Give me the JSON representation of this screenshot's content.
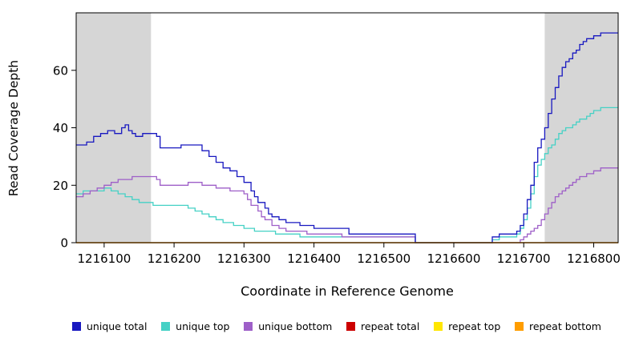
{
  "chart_data": {
    "type": "line",
    "subtype": "step",
    "title": "",
    "xlabel": "Coordinate in Reference Genome",
    "ylabel": "Read Coverage Depth",
    "xlim": [
      1216060,
      1216835
    ],
    "ylim": [
      0,
      80
    ],
    "x_ticks": [
      1216100,
      1216200,
      1216300,
      1216400,
      1216500,
      1216600,
      1216700,
      1216800
    ],
    "y_ticks": [
      0,
      20,
      40,
      60
    ],
    "grid": false,
    "legend_position": "bottom",
    "shaded_regions": [
      {
        "x_start": 1216060,
        "x_end": 1216167,
        "color": "#d6d6d6"
      },
      {
        "x_start": 1216730,
        "x_end": 1216835,
        "color": "#d6d6d6"
      }
    ],
    "series": [
      {
        "name": "unique total",
        "color": "#1818c0",
        "points": [
          [
            1216060,
            34
          ],
          [
            1216075,
            35
          ],
          [
            1216085,
            37
          ],
          [
            1216095,
            38
          ],
          [
            1216105,
            39
          ],
          [
            1216115,
            38
          ],
          [
            1216125,
            40
          ],
          [
            1216130,
            41
          ],
          [
            1216135,
            39
          ],
          [
            1216140,
            38
          ],
          [
            1216145,
            37
          ],
          [
            1216155,
            38
          ],
          [
            1216165,
            38
          ],
          [
            1216175,
            37
          ],
          [
            1216180,
            33
          ],
          [
            1216200,
            33
          ],
          [
            1216210,
            34
          ],
          [
            1216230,
            34
          ],
          [
            1216240,
            32
          ],
          [
            1216250,
            30
          ],
          [
            1216260,
            28
          ],
          [
            1216270,
            26
          ],
          [
            1216280,
            25
          ],
          [
            1216290,
            23
          ],
          [
            1216300,
            21
          ],
          [
            1216310,
            18
          ],
          [
            1216315,
            16
          ],
          [
            1216320,
            14
          ],
          [
            1216330,
            12
          ],
          [
            1216335,
            10
          ],
          [
            1216340,
            9
          ],
          [
            1216350,
            8
          ],
          [
            1216360,
            7
          ],
          [
            1216380,
            6
          ],
          [
            1216400,
            5
          ],
          [
            1216430,
            5
          ],
          [
            1216450,
            3
          ],
          [
            1216540,
            3
          ],
          [
            1216545,
            0
          ],
          [
            1216650,
            0
          ],
          [
            1216655,
            2
          ],
          [
            1216665,
            3
          ],
          [
            1216680,
            3
          ],
          [
            1216690,
            4
          ],
          [
            1216695,
            6
          ],
          [
            1216700,
            10
          ],
          [
            1216705,
            15
          ],
          [
            1216710,
            20
          ],
          [
            1216715,
            28
          ],
          [
            1216720,
            33
          ],
          [
            1216725,
            36
          ],
          [
            1216730,
            40
          ],
          [
            1216735,
            45
          ],
          [
            1216740,
            50
          ],
          [
            1216745,
            54
          ],
          [
            1216750,
            58
          ],
          [
            1216755,
            61
          ],
          [
            1216760,
            63
          ],
          [
            1216765,
            64
          ],
          [
            1216770,
            66
          ],
          [
            1216775,
            67
          ],
          [
            1216780,
            69
          ],
          [
            1216785,
            70
          ],
          [
            1216790,
            71
          ],
          [
            1216800,
            72
          ],
          [
            1216810,
            73
          ],
          [
            1216835,
            73
          ]
        ]
      },
      {
        "name": "unique top",
        "color": "#45d1c5",
        "points": [
          [
            1216060,
            17
          ],
          [
            1216070,
            18
          ],
          [
            1216090,
            18
          ],
          [
            1216100,
            19
          ],
          [
            1216110,
            18
          ],
          [
            1216120,
            17
          ],
          [
            1216130,
            16
          ],
          [
            1216140,
            15
          ],
          [
            1216150,
            14
          ],
          [
            1216170,
            13
          ],
          [
            1216200,
            13
          ],
          [
            1216220,
            12
          ],
          [
            1216230,
            11
          ],
          [
            1216240,
            10
          ],
          [
            1216250,
            9
          ],
          [
            1216260,
            8
          ],
          [
            1216270,
            7
          ],
          [
            1216285,
            6
          ],
          [
            1216300,
            5
          ],
          [
            1216315,
            4
          ],
          [
            1216330,
            4
          ],
          [
            1216345,
            3
          ],
          [
            1216360,
            3
          ],
          [
            1216380,
            2
          ],
          [
            1216540,
            2
          ],
          [
            1216545,
            0
          ],
          [
            1216650,
            0
          ],
          [
            1216655,
            1
          ],
          [
            1216665,
            2
          ],
          [
            1216680,
            2
          ],
          [
            1216690,
            3
          ],
          [
            1216695,
            5
          ],
          [
            1216700,
            8
          ],
          [
            1216705,
            12
          ],
          [
            1216710,
            17
          ],
          [
            1216715,
            23
          ],
          [
            1216720,
            27
          ],
          [
            1216725,
            29
          ],
          [
            1216730,
            31
          ],
          [
            1216735,
            33
          ],
          [
            1216740,
            34
          ],
          [
            1216745,
            36
          ],
          [
            1216750,
            38
          ],
          [
            1216755,
            39
          ],
          [
            1216760,
            40
          ],
          [
            1216770,
            41
          ],
          [
            1216775,
            42
          ],
          [
            1216780,
            43
          ],
          [
            1216790,
            44
          ],
          [
            1216795,
            45
          ],
          [
            1216800,
            46
          ],
          [
            1216810,
            47
          ],
          [
            1216835,
            47
          ]
        ]
      },
      {
        "name": "unique bottom",
        "color": "#9e5fc8",
        "points": [
          [
            1216060,
            16
          ],
          [
            1216070,
            17
          ],
          [
            1216080,
            18
          ],
          [
            1216090,
            19
          ],
          [
            1216100,
            20
          ],
          [
            1216110,
            21
          ],
          [
            1216120,
            22
          ],
          [
            1216140,
            23
          ],
          [
            1216170,
            23
          ],
          [
            1216175,
            22
          ],
          [
            1216180,
            20
          ],
          [
            1216200,
            20
          ],
          [
            1216220,
            21
          ],
          [
            1216230,
            21
          ],
          [
            1216240,
            20
          ],
          [
            1216260,
            19
          ],
          [
            1216280,
            18
          ],
          [
            1216300,
            17
          ],
          [
            1216305,
            15
          ],
          [
            1216310,
            13
          ],
          [
            1216320,
            11
          ],
          [
            1216325,
            9
          ],
          [
            1216330,
            8
          ],
          [
            1216340,
            6
          ],
          [
            1216350,
            5
          ],
          [
            1216360,
            4
          ],
          [
            1216390,
            3
          ],
          [
            1216420,
            3
          ],
          [
            1216440,
            2
          ],
          [
            1216540,
            2
          ],
          [
            1216545,
            0
          ],
          [
            1216690,
            0
          ],
          [
            1216695,
            1
          ],
          [
            1216700,
            2
          ],
          [
            1216705,
            3
          ],
          [
            1216710,
            4
          ],
          [
            1216715,
            5
          ],
          [
            1216720,
            6
          ],
          [
            1216725,
            8
          ],
          [
            1216730,
            10
          ],
          [
            1216735,
            12
          ],
          [
            1216740,
            14
          ],
          [
            1216745,
            16
          ],
          [
            1216750,
            17
          ],
          [
            1216755,
            18
          ],
          [
            1216760,
            19
          ],
          [
            1216765,
            20
          ],
          [
            1216770,
            21
          ],
          [
            1216775,
            22
          ],
          [
            1216780,
            23
          ],
          [
            1216790,
            24
          ],
          [
            1216800,
            25
          ],
          [
            1216810,
            26
          ],
          [
            1216835,
            26
          ]
        ]
      },
      {
        "name": "repeat total",
        "color": "#cc0000",
        "points": [
          [
            1216060,
            0
          ],
          [
            1216835,
            0
          ]
        ]
      },
      {
        "name": "repeat top",
        "color": "#ffe600",
        "points": [
          [
            1216060,
            0
          ],
          [
            1216835,
            0
          ]
        ]
      },
      {
        "name": "repeat bottom",
        "color": "#ff9d00",
        "points": [
          [
            1216060,
            0
          ],
          [
            1216835,
            0
          ]
        ]
      }
    ]
  }
}
